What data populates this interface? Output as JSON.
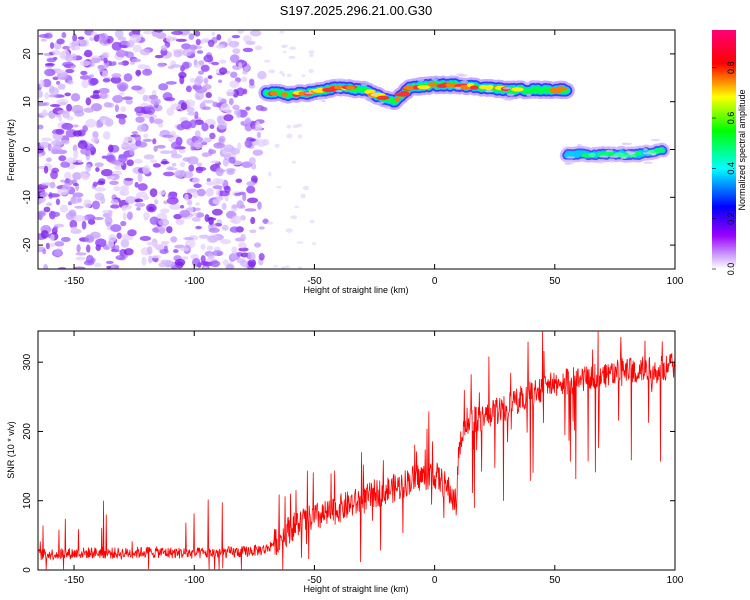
{
  "title": "S197.2025.296.21.00.G30",
  "chart_data": [
    {
      "type": "heatmap",
      "xlabel": "Height of straight line (km)",
      "ylabel": "Frequency (Hz)",
      "xlim": [
        -165,
        100
      ],
      "ylim": [
        -25,
        25
      ],
      "xticks": [
        -150,
        -100,
        -50,
        0,
        50,
        100
      ],
      "yticks": [
        -20,
        -10,
        0,
        10,
        20
      ],
      "noise_region": {
        "x": [
          -165,
          -70
        ],
        "y": [
          -25,
          25
        ],
        "amplitude": "low, scattered"
      },
      "ridge_segments": [
        {
          "name": "upper-trace",
          "x": [
            -70,
            -60,
            -50,
            -40,
            -30,
            -20,
            -17,
            -10,
            0,
            10,
            20,
            30,
            40,
            50,
            55
          ],
          "y": [
            12,
            11.5,
            12,
            13,
            12.5,
            10.5,
            10,
            13,
            13.5,
            13.5,
            13,
            12.5,
            12.5,
            12.5,
            12.5
          ],
          "amplitude": 0.8
        },
        {
          "name": "lower-trace",
          "x": [
            55,
            65,
            75,
            85,
            95
          ],
          "y": [
            -1,
            -1,
            -1,
            -1,
            0
          ],
          "amplitude": 0.45
        }
      ],
      "colorbar": {
        "label": "Normalized spectral amplitude",
        "range": [
          0,
          0.95
        ],
        "ticks": [
          0.0,
          0.2,
          0.4,
          0.6,
          0.8
        ],
        "tick_labels": [
          "0.0",
          "0.2",
          "0.4",
          "0.6",
          "0.8"
        ],
        "colors": [
          "#ffffff",
          "#9900ff",
          "#0000ff",
          "#00ffff",
          "#00ff00",
          "#ffff00",
          "#ff0000",
          "#ff0077"
        ]
      }
    },
    {
      "type": "line",
      "xlabel": "Height of straight line (km)",
      "ylabel": "SNR (10 * v/v)",
      "xlim": [
        -165,
        100
      ],
      "ylim": [
        0,
        345
      ],
      "xticks": [
        -150,
        -100,
        -50,
        0,
        50,
        100
      ],
      "yticks": [
        0,
        100,
        200,
        300
      ],
      "series": [
        {
          "name": "SNR",
          "color": "#ff0000",
          "x": [
            -165,
            -150,
            -140,
            -130,
            -120,
            -110,
            -100,
            -90,
            -80,
            -70,
            -65,
            -60,
            -55,
            -50,
            -45,
            -40,
            -35,
            -30,
            -25,
            -20,
            -15,
            -10,
            -5,
            0,
            5,
            9,
            10,
            12,
            15,
            20,
            25,
            30,
            35,
            40,
            45,
            50,
            55,
            60,
            65,
            70,
            75,
            80,
            85,
            90,
            95,
            100
          ],
          "values": [
            22,
            24,
            25,
            24,
            26,
            25,
            24,
            25,
            26,
            30,
            45,
            60,
            70,
            75,
            80,
            88,
            95,
            100,
            110,
            115,
            120,
            130,
            135,
            138,
            120,
            95,
            170,
            200,
            215,
            220,
            228,
            235,
            245,
            258,
            262,
            268,
            272,
            275,
            278,
            282,
            286,
            288,
            290,
            288,
            290,
            295
          ]
        }
      ]
    }
  ]
}
